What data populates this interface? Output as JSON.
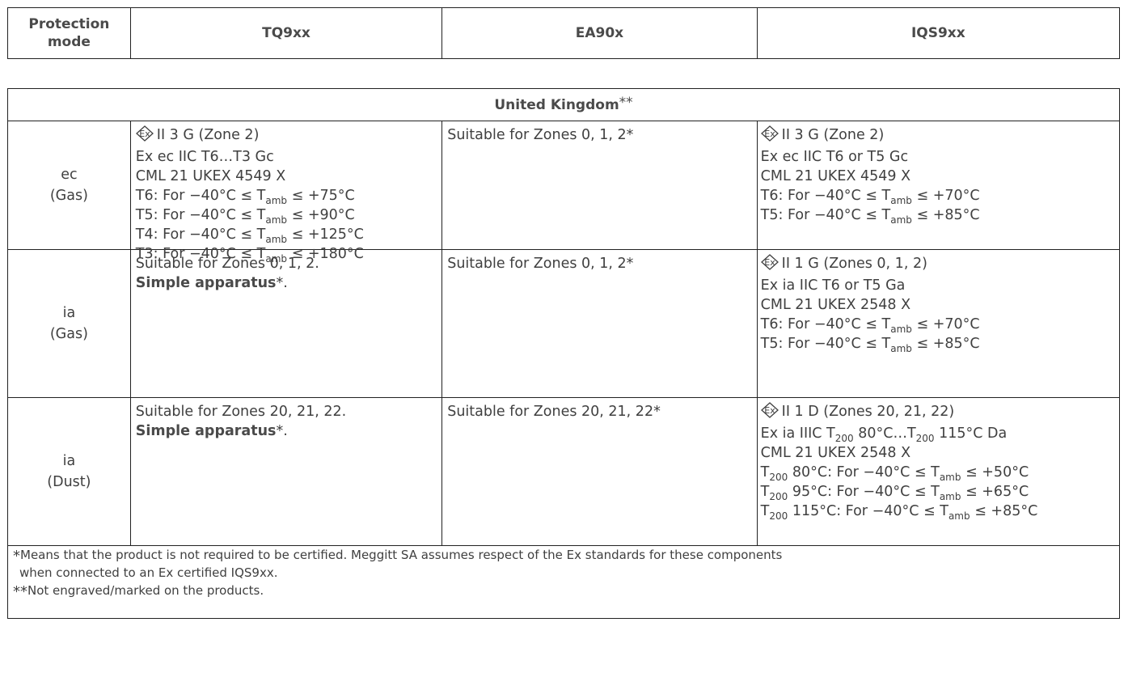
{
  "header": {
    "protection_mode": "Protection mode",
    "col1": "TQ9xx",
    "col2": "EA90x",
    "col3": "IQS9xx"
  },
  "table": {
    "title": "United Kingdom",
    "title_sup": "**",
    "rows": [
      {
        "mode": "ec",
        "medium": "(Gas)",
        "tq": {
          "l1": "II 3 G (Zone 2)",
          "l2": "Ex ec IIC T6…T3 Gc",
          "l3": "CML 21 UKEX 4549 X",
          "l4a": "T6: For −40°C ≤ T",
          "l4sub": "amb",
          "l4b": " ≤ +75°C",
          "l5a": "T5: For −40°C ≤ T",
          "l5sub": "amb",
          "l5b": " ≤ +90°C",
          "l6a": "T4: For −40°C ≤ T",
          "l6sub": "amb",
          "l6b": " ≤ +125°C",
          "l7a": "T3: For −40°C ≤ T",
          "l7sub": "amb",
          "l7b": " ≤ +180°C"
        },
        "ea": "Suitable for Zones 0, 1, 2*",
        "iqs": {
          "l1": "II 3 G (Zone 2)",
          "l2": "Ex ec IIC T6 or T5 Gc",
          "l3": "CML 21 UKEX 4549 X",
          "l4a": "T6: For −40°C ≤ T",
          "l4sub": "amb",
          "l4b": " ≤ +70°C",
          "l5a": "T5: For −40°C ≤ T",
          "l5sub": "amb",
          "l5b": " ≤ +85°C"
        }
      },
      {
        "mode": "ia",
        "medium": "(Gas)",
        "tq": {
          "l1": "Suitable for Zones 0, 1, 2.",
          "bold": "Simple apparatus",
          "after": "*."
        },
        "ea": "Suitable for Zones 0, 1, 2*",
        "iqs": {
          "l1": "II 1 G (Zones 0, 1, 2)",
          "l2": "Ex ia IIC T6 or T5 Ga",
          "l3": "CML 21 UKEX 2548 X",
          "l4a": "T6: For −40°C ≤ T",
          "l4sub": "amb",
          "l4b": " ≤ +70°C",
          "l5a": "T5: For −40°C ≤ T",
          "l5sub": "amb",
          "l5b": " ≤ +85°C"
        }
      },
      {
        "mode": "ia",
        "medium": "(Dust)",
        "tq": {
          "l1": "Suitable for Zones 20, 21, 22.",
          "bold": "Simple apparatus",
          "after": "*."
        },
        "ea": "Suitable for Zones 20, 21, 22*",
        "iqs": {
          "l1": "II 1 D (Zones 20, 21, 22)",
          "l2a": "Ex ia IIIC T",
          "l2s1": "200",
          "l2b": " 80°C…T",
          "l2s2": "200",
          "l2c": " 115°C Da",
          "l3": "CML 21 UKEX 2548 X",
          "l4t": "T",
          "l4s": "200",
          "l4a": " 80°C: For −40°C ≤ T",
          "l4sub": "amb",
          "l4b": " ≤ +50°C",
          "l5t": "T",
          "l5s": "200",
          "l5a": " 95°C: For −40°C ≤ T",
          "l5sub": "amb",
          "l5b": " ≤ +65°C",
          "l6t": "T",
          "l6s": "200",
          "l6a": " 115°C: For −40°C ≤ T",
          "l6sub": "amb",
          "l6b": " ≤ +85°C"
        }
      }
    ],
    "notes": {
      "n1_star": "*",
      "n1": "Means that the product is not required to be certified. Meggitt SA assumes respect of the Ex standards for these components",
      "n1b": "when connected to an Ex certified IQS9xx.",
      "n2_star": "**",
      "n2": "Not engraved/marked on the products."
    }
  },
  "icons": {
    "ex_mark": "ex-mark-icon"
  }
}
